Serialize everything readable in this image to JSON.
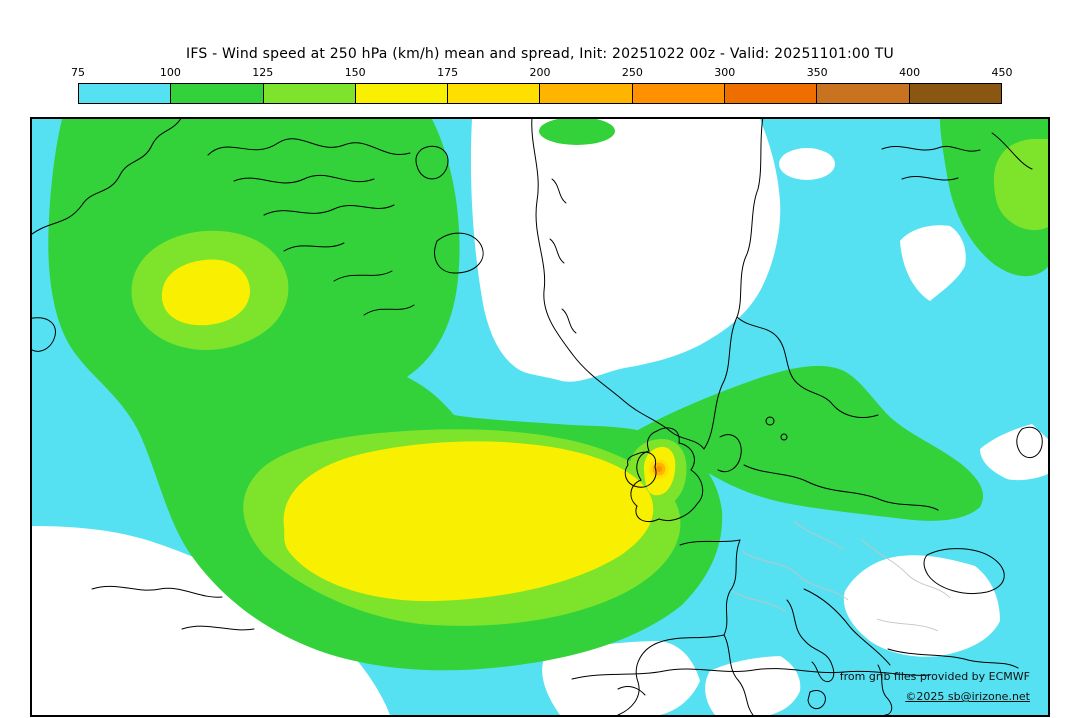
{
  "title": "IFS - Wind speed at 250 hPa (km/h) mean and spread, Init: 20251022 00z - Valid: 20251101:00 TU",
  "colorbar": {
    "tick_labels": [
      "75",
      "100",
      "125",
      "150",
      "175",
      "200",
      "250",
      "300",
      "350",
      "400",
      "450"
    ],
    "segment_colors": [
      "#55e1f2",
      "#33d23a",
      "#7ee32b",
      "#f8f000",
      "#ffdf00",
      "#ffb400",
      "#ff9000",
      "#ee6f00",
      "#c9721f",
      "#8a5713"
    ]
  },
  "map": {
    "region_fills": {
      "background": "#ffffff",
      "band_75_100": "#55e1f2",
      "band_100_125": "#33d23a",
      "band_125_150": "#7ee32b",
      "band_150_175": "#f8f000",
      "band_175_200": "#ffdf00",
      "band_200_250": "#ffb400",
      "band_250_300": "#ff9000",
      "coastline": "#000000",
      "admin_border": "#c3c3c3"
    }
  },
  "credits": {
    "line1": "from grib files provided by ECMWF",
    "line2": "©2025 sb@irizone.net"
  }
}
